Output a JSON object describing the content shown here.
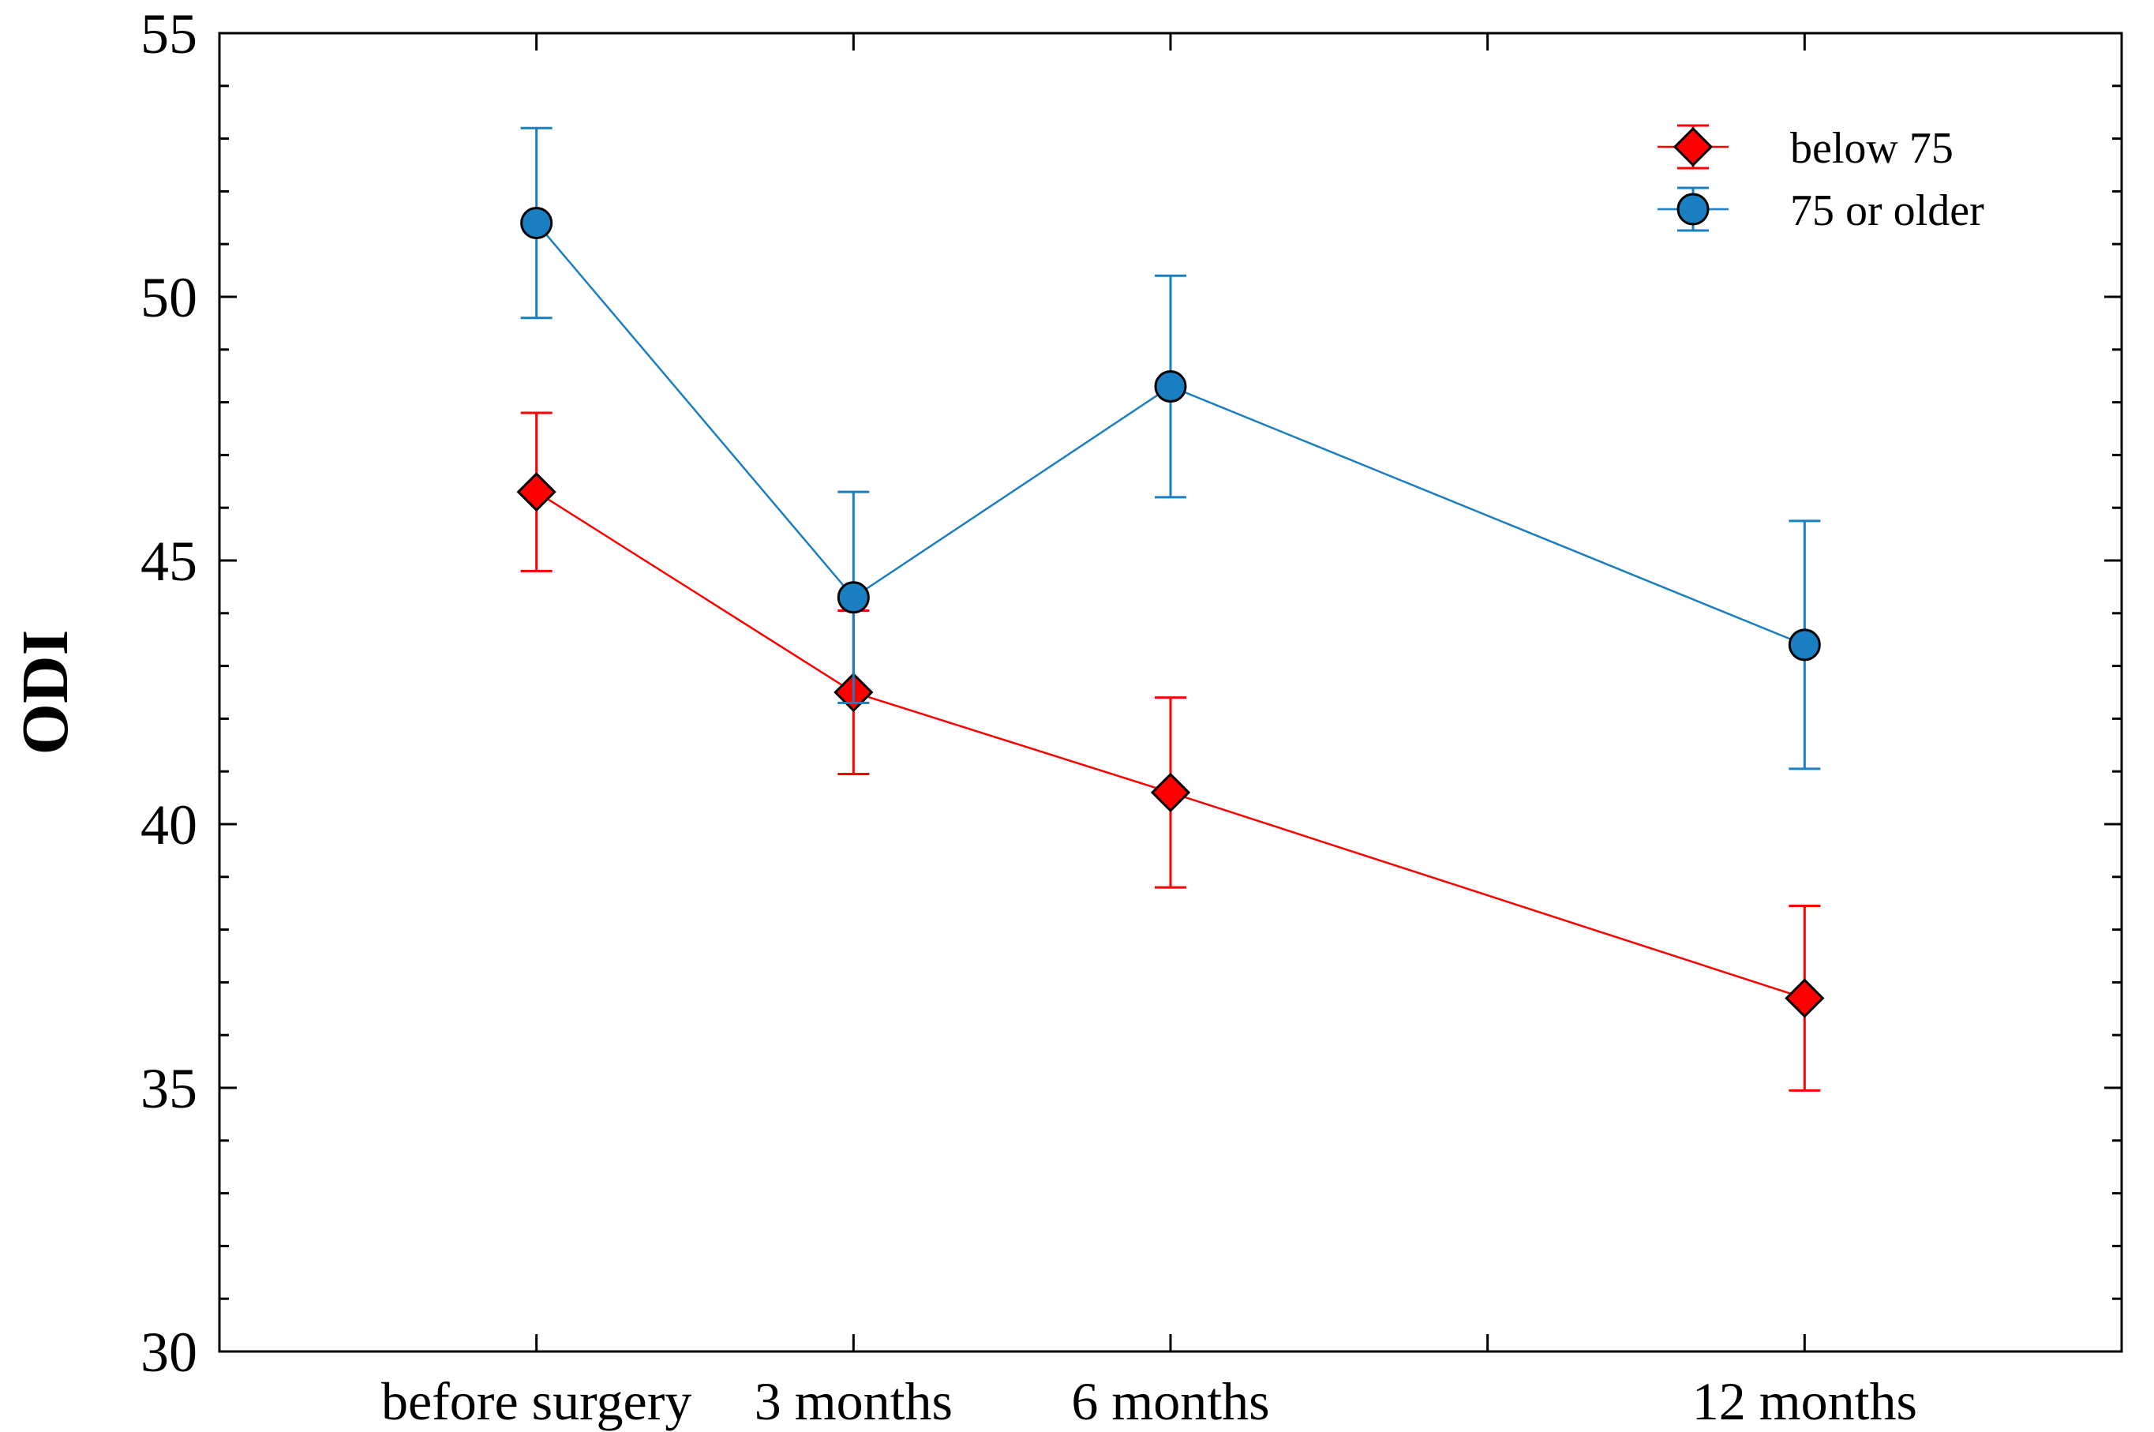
{
  "chart_data": {
    "type": "line",
    "title": "",
    "xlabel": "",
    "ylabel": "ODI",
    "ylim": [
      30,
      55
    ],
    "yticks": [
      30,
      35,
      40,
      45,
      50,
      55
    ],
    "xlim": [
      0,
      6
    ],
    "x_tick_positions": [
      0,
      1,
      2,
      3,
      4,
      5,
      6
    ],
    "categories": [
      {
        "label": "before surgery",
        "x": 1
      },
      {
        "label": "3 months",
        "x": 2
      },
      {
        "label": "6 months",
        "x": 3
      },
      {
        "label": "12 months",
        "x": 5
      }
    ],
    "series": [
      {
        "name": "below 75",
        "color": "#ff0000",
        "marker": "diamond",
        "x": [
          1,
          2,
          3,
          5
        ],
        "values": [
          46.3,
          42.5,
          40.6,
          36.7
        ],
        "error": [
          1.5,
          1.55,
          1.8,
          1.75
        ]
      },
      {
        "name": "75 or older",
        "color": "#1a7fc0",
        "marker": "circle",
        "x": [
          1,
          2,
          3,
          5
        ],
        "values": [
          51.4,
          44.3,
          48.3,
          43.4
        ],
        "error": [
          1.8,
          2.0,
          2.1,
          2.35
        ]
      }
    ],
    "legend": {
      "position": "top-right",
      "entries": [
        "below 75",
        "75 or older"
      ]
    },
    "grid": false
  }
}
